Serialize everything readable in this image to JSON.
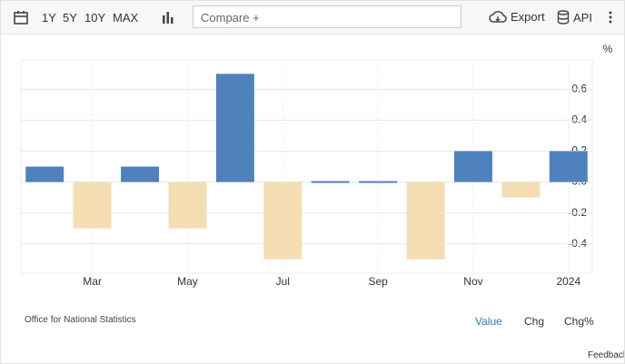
{
  "ui": {
    "ranges": [
      "1Y",
      "5Y",
      "10Y",
      "MAX"
    ],
    "compare": "Compare +",
    "export": "Export",
    "api": "API",
    "views": [
      "Value",
      "Chg",
      "Chg%"
    ],
    "feedback": "Feedback"
  },
  "chart_data": {
    "type": "bar",
    "unit": "%",
    "source": "Office for National Statistics",
    "categories": [
      null,
      "Mar",
      null,
      "May",
      null,
      "Jul",
      null,
      "Sep",
      null,
      "Nov",
      null,
      "2024"
    ],
    "values": [
      0.1,
      -0.3,
      0.1,
      -0.3,
      0.7,
      -0.5,
      0,
      0,
      -0.5,
      0.2,
      -0.1,
      0.2
    ],
    "color": "#4f81bd",
    "negative_color": "#f5deb3",
    "ylim": [
      -0.59,
      0.79
    ],
    "yticks": [
      -0.4,
      -0.2,
      {
        "value": 0,
        "label": "0.0"
      },
      0.2,
      0.4,
      0.6
    ],
    "grid": true
  }
}
